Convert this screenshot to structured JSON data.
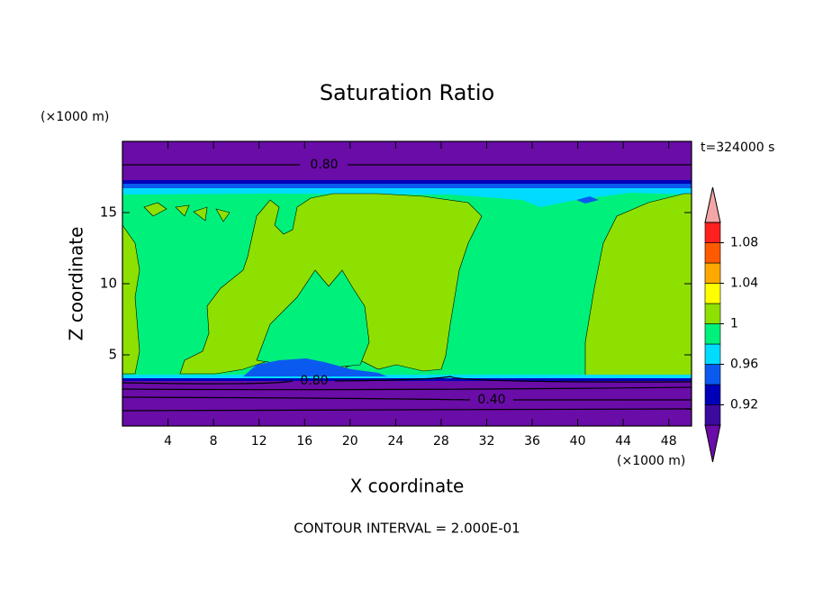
{
  "chart_data": {
    "type": "contour",
    "title": "Saturation Ratio",
    "x_label": "X coordinate",
    "y_label": "Z coordinate",
    "x_unit": "(×1000 m)",
    "y_unit": "(×1000 m)",
    "time_label": "t=324000 s",
    "footer": "CONTOUR INTERVAL = 2.000E-01",
    "xlim": [
      0,
      50
    ],
    "ylim": [
      0,
      20
    ],
    "xticks": [
      4,
      8,
      12,
      16,
      20,
      24,
      28,
      32,
      36,
      40,
      44,
      48
    ],
    "yticks": [
      5,
      10,
      15
    ],
    "contour_labels": [
      {
        "value": 0.8,
        "label": "0.80"
      },
      {
        "value": 0.8,
        "label": "0.80"
      },
      {
        "value": 0.4,
        "label": "0.40"
      }
    ],
    "colorbar": {
      "levels": [
        0.9,
        0.92,
        0.94,
        0.96,
        0.98,
        1,
        1.02,
        1.04,
        1.06,
        1.08,
        1.1
      ],
      "colors": [
        "#6a0ca8",
        "#3c0a9e",
        "#0000b8",
        "#0a5af0",
        "#00dcff",
        "#00f07c",
        "#8ee000",
        "#ffff00",
        "#ffa800",
        "#ff5a00",
        "#ff2020",
        "#f4a6a6"
      ],
      "ticks": [
        0.92,
        0.96,
        1,
        1.04,
        1.08
      ]
    }
  }
}
